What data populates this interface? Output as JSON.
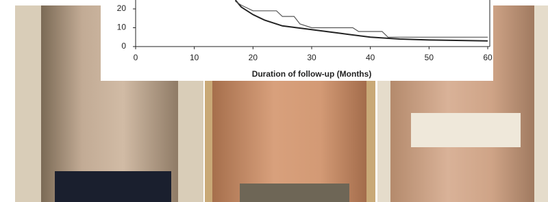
{
  "chart_data": {
    "type": "line",
    "xlabel": "Duration of follow-up (Months)",
    "xlim": [
      0,
      60
    ],
    "xticks": [
      0,
      10,
      20,
      30,
      40,
      50,
      60
    ],
    "ylim": [
      0,
      25
    ],
    "yticks": [
      0,
      10,
      20
    ],
    "series": [
      {
        "color": "#222222",
        "x": [
          17,
          18,
          20,
          22,
          25,
          30,
          35,
          40,
          45,
          50,
          60
        ],
        "values": [
          24.7,
          21,
          17,
          14,
          11,
          9,
          7,
          5,
          4,
          3.5,
          3
        ]
      },
      {
        "color": "#555555",
        "x": [
          17,
          18,
          20,
          24,
          25,
          27,
          28,
          30,
          37,
          38,
          42,
          43,
          60
        ],
        "values": [
          24,
          22,
          19,
          19,
          16,
          16,
          12,
          10,
          10,
          8,
          8,
          5,
          5
        ]
      }
    ]
  }
}
